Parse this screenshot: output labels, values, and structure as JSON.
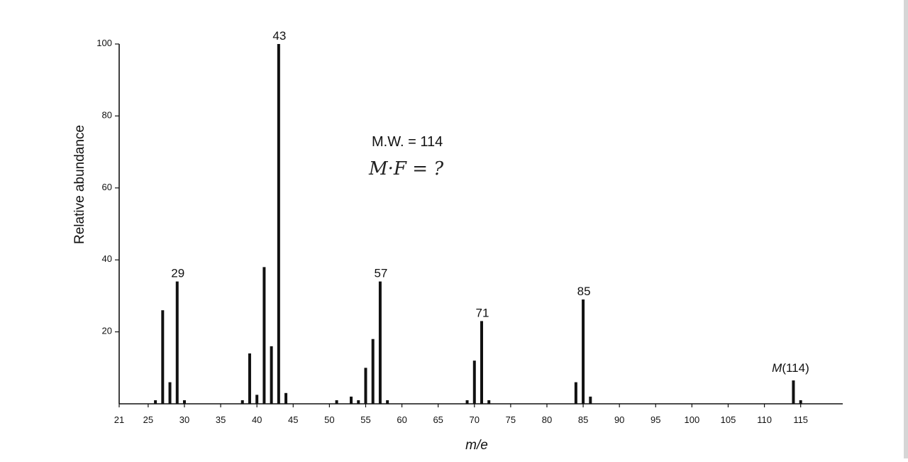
{
  "chart_data": {
    "type": "bar",
    "xlabel": "m/e",
    "ylabel": "Relative abundance",
    "xlim": [
      21,
      121
    ],
    "ylim": [
      0,
      100
    ],
    "x_ticks": [
      21,
      25,
      30,
      35,
      40,
      45,
      50,
      55,
      60,
      65,
      70,
      75,
      80,
      85,
      90,
      95,
      100,
      105,
      110,
      115
    ],
    "y_ticks": [
      20,
      40,
      60,
      80,
      100
    ],
    "annotations": [
      "M.W. = 114",
      "M·F = ?"
    ],
    "peaks": [
      {
        "x": 26,
        "y": 1
      },
      {
        "x": 27,
        "y": 26
      },
      {
        "x": 28,
        "y": 6
      },
      {
        "x": 29,
        "y": 34,
        "label": "29"
      },
      {
        "x": 30,
        "y": 1
      },
      {
        "x": 38,
        "y": 1
      },
      {
        "x": 39,
        "y": 14
      },
      {
        "x": 40,
        "y": 2.5
      },
      {
        "x": 41,
        "y": 38
      },
      {
        "x": 42,
        "y": 16
      },
      {
        "x": 43,
        "y": 100,
        "label": "43"
      },
      {
        "x": 44,
        "y": 3
      },
      {
        "x": 51,
        "y": 1
      },
      {
        "x": 53,
        "y": 2
      },
      {
        "x": 54,
        "y": 1
      },
      {
        "x": 55,
        "y": 10
      },
      {
        "x": 56,
        "y": 18
      },
      {
        "x": 57,
        "y": 34,
        "label": "57"
      },
      {
        "x": 58,
        "y": 1
      },
      {
        "x": 69,
        "y": 1
      },
      {
        "x": 70,
        "y": 12
      },
      {
        "x": 71,
        "y": 23,
        "label": "71"
      },
      {
        "x": 72,
        "y": 1
      },
      {
        "x": 84,
        "y": 6
      },
      {
        "x": 85,
        "y": 29,
        "label": "85"
      },
      {
        "x": 86,
        "y": 2
      },
      {
        "x": 114,
        "y": 6.5,
        "label": "M(114)"
      },
      {
        "x": 115,
        "y": 1
      }
    ]
  }
}
